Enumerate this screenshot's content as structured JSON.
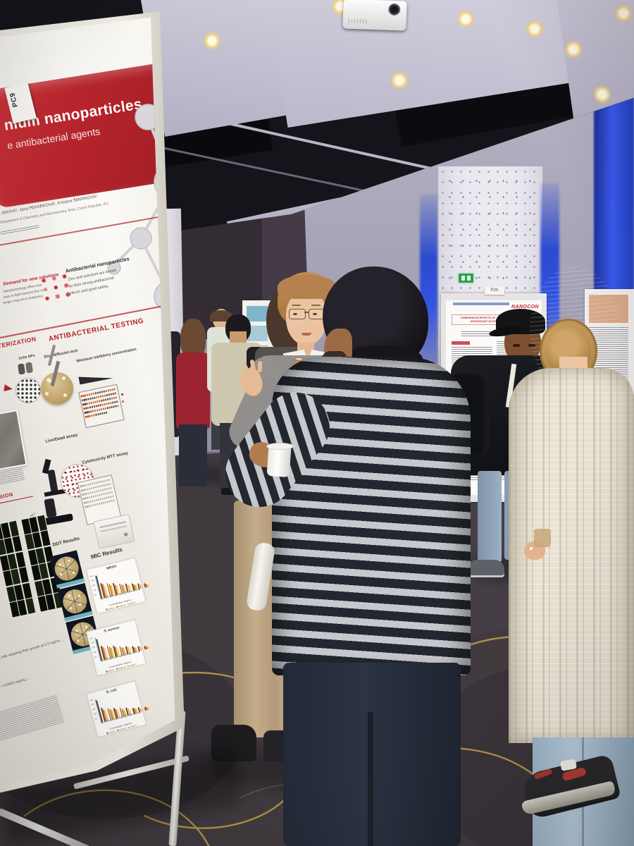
{
  "scene": {
    "setting": "conference poster session hall"
  },
  "colors": {
    "poster_red": "#b5242b",
    "lanyard_orange": "#e08226",
    "led_blue": "#3353e0",
    "carpet_gold": "#c7a24a",
    "exit_green": "#2e9e4f"
  },
  "poster_left": {
    "tag": "PC9",
    "title_line1_fragment": "nium nanoparticles",
    "title_line2_fragment": "e antibacterial agents",
    "authors_fragment": "ANOVÁ¹, Jana PEKÁRKOVÁ¹, Kristýna ŠMERKOVÁ¹",
    "affiliation_fragment": "Department of Chemistry and Biochemistry, Brno, Czech Republic, EU",
    "sections": {
      "demand_heading": "Demand for new solutions",
      "demand_line1": "Nanotechnology offers new",
      "demand_line2": "ways to fight bacteria that no",
      "demand_line3": "longer respond to antibiotics.",
      "antibacterial_heading": "Antibacterial nanoparticles",
      "antibacterial_line1": "Zinc and selenium are known",
      "antibacterial_line2": "for their strong antibacterial",
      "antibacterial_line3": "effects and good safety.",
      "characterization_fragment": "TERIZATION",
      "testing_heading": "ANTIBACTERIAL TESTING",
      "conclusion_fragment": "USION"
    },
    "labels": {
      "znse_nps": "ZnSe NPs",
      "disc_diffusion": "Disc diffusion test",
      "mic": "Minimum inhibitory concentration",
      "live_dead": "Live/Dead assay",
      "mtt": "Cytotoxicity MTT assay",
      "ddt_results": "DDT Results",
      "mic_results": "MIC Results",
      "grid_col": "ZnSe c"
    },
    "conclusion_fragments": [
      "…MRSA, fully stopping their growth at 0.5 mg/mL…",
      "…(MIC = 0.0625 mg/mL)…"
    ],
    "decorative_icons": [
      "✺",
      "❄",
      "✱",
      "✳",
      "✸",
      "❋",
      "✹",
      "✻",
      "✽"
    ]
  },
  "poster_right": {
    "tag": "P20",
    "brand": "NANOCON",
    "title_fragment": "COMPARATIVE EFFECTS OF … NANOPARTICLES ON THE ANTIOXIDANT ACTIVITY OF … EXTRACTS"
  },
  "chart_data": [
    {
      "type": "bar",
      "title": "MRSA",
      "ylim": [
        0,
        250
      ],
      "yticks": [
        50,
        100,
        150,
        200,
        250
      ],
      "control": 240,
      "categories": [
        "C",
        "0.02",
        "0.03",
        "0.06",
        "0.13",
        "0.25",
        "0.5",
        "1",
        "2"
      ],
      "groups": [
        [
          158,
          140,
          124
        ],
        [
          140,
          122,
          108
        ],
        [
          122,
          106,
          92
        ],
        [
          104,
          90,
          78
        ],
        [
          88,
          74,
          63
        ],
        [
          72,
          60,
          50
        ],
        [
          56,
          46,
          37
        ],
        [
          42,
          33,
          25
        ]
      ],
      "series": [
        "ZnSe A",
        "ZnSe B",
        "ZnSe C"
      ],
      "series_colors": [
        "#7a4526",
        "#dd7d28",
        "#e6bf3a"
      ],
      "xlabel": "Concentration (mg/mL)",
      "legend_position": "bottom",
      "grid": false
    },
    {
      "type": "bar",
      "title": "S. aureus",
      "ylim": [
        0,
        250
      ],
      "yticks": [
        50,
        100,
        150,
        200,
        250
      ],
      "control": 228,
      "categories": [
        "C",
        "0.02",
        "0.03",
        "0.06",
        "0.13",
        "0.25",
        "0.5",
        "1",
        "2"
      ],
      "groups": [
        [
          150,
          134,
          118
        ],
        [
          134,
          118,
          104
        ],
        [
          116,
          100,
          88
        ],
        [
          98,
          84,
          72
        ],
        [
          82,
          70,
          58
        ],
        [
          66,
          55,
          45
        ],
        [
          52,
          42,
          33
        ],
        [
          38,
          30,
          22
        ]
      ],
      "series": [
        "ZnSe A",
        "ZnSe B",
        "ZnSe C"
      ],
      "series_colors": [
        "#7a4526",
        "#dd7d28",
        "#e6bf3a"
      ],
      "xlabel": "Concentration (mg/mL)",
      "legend_position": "bottom",
      "grid": false
    },
    {
      "type": "bar",
      "title": "E. coli",
      "ylim": [
        0,
        250
      ],
      "yticks": [
        50,
        100,
        150,
        200,
        250
      ],
      "control": 235,
      "categories": [
        "C",
        "0.02",
        "0.03",
        "0.06",
        "0.13",
        "0.25",
        "0.5",
        "1",
        "2"
      ],
      "groups": [
        [
          144,
          128,
          114
        ],
        [
          128,
          112,
          98
        ],
        [
          110,
          96,
          84
        ],
        [
          94,
          80,
          68
        ],
        [
          78,
          66,
          55
        ],
        [
          62,
          52,
          42
        ],
        [
          48,
          38,
          30
        ],
        [
          34,
          26,
          20
        ]
      ],
      "series": [
        "ZnSe A",
        "ZnSe B",
        "ZnSe C"
      ],
      "series_colors": [
        "#7a4526",
        "#dd7d28",
        "#e6bf3a"
      ],
      "xlabel": "Concentration (mg/mL)",
      "legend_position": "bottom",
      "grid": false
    }
  ]
}
